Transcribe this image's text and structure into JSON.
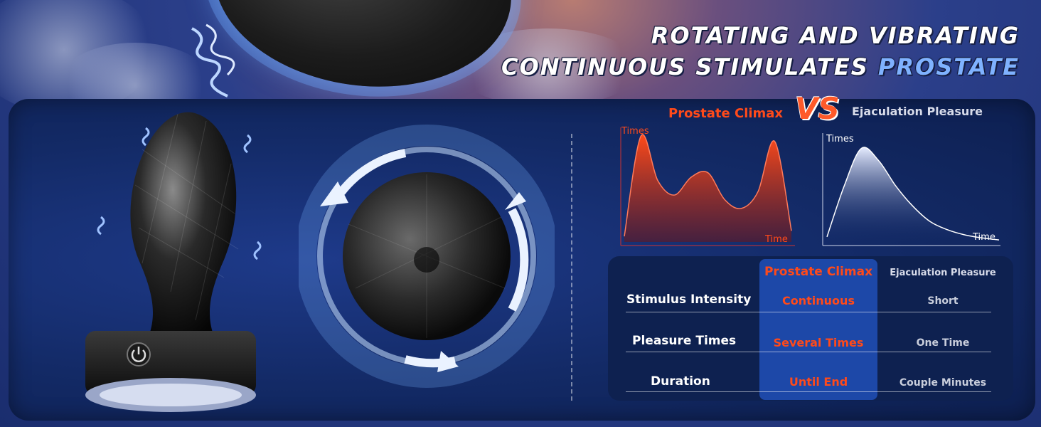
{
  "headline": {
    "line1": "ROTATING AND VIBRATING",
    "line2_part1": "CONTINUOUS STIMULATES ",
    "line2_accent": "PROSTATE"
  },
  "vs_label": "VS",
  "comparison": {
    "left_title": "Prostate Climax",
    "right_title": "Ejaculation Pleasure"
  },
  "chart_data": [
    {
      "type": "area",
      "title": "Prostate Climax",
      "xlabel": "Time",
      "ylabel": "Times",
      "x": [
        0,
        1,
        2,
        3,
        4,
        5,
        6,
        7,
        8,
        9,
        10
      ],
      "values": [
        0.05,
        0.95,
        0.55,
        0.42,
        0.58,
        0.62,
        0.38,
        0.3,
        0.45,
        0.9,
        0.1
      ]
    },
    {
      "type": "area",
      "title": "Ejaculation Pleasure",
      "xlabel": "Time",
      "ylabel": "Times",
      "x": [
        0,
        1,
        2,
        3,
        4,
        5,
        6,
        7,
        8,
        9,
        10
      ],
      "values": [
        0.05,
        0.55,
        0.92,
        0.8,
        0.55,
        0.35,
        0.2,
        0.12,
        0.07,
        0.04,
        0.02
      ]
    }
  ],
  "table": {
    "col_a": "Prostate Climax",
    "col_b": "Ejaculation Pleasure",
    "rows": [
      {
        "label": "Stimulus Intensity",
        "a": "Continuous",
        "b": "Short"
      },
      {
        "label": "Pleasure Times",
        "a": "Several Times",
        "b": "One Time"
      },
      {
        "label": "Duration",
        "a": "Until End",
        "b": "Couple Minutes"
      }
    ]
  },
  "colors": {
    "accent_orange": "#ff4a1a",
    "accent_blue": "#7fb2ff",
    "panel": "#132a66"
  },
  "icons": [
    "power-icon",
    "rotate-arrow-icon",
    "vibration-icon"
  ]
}
